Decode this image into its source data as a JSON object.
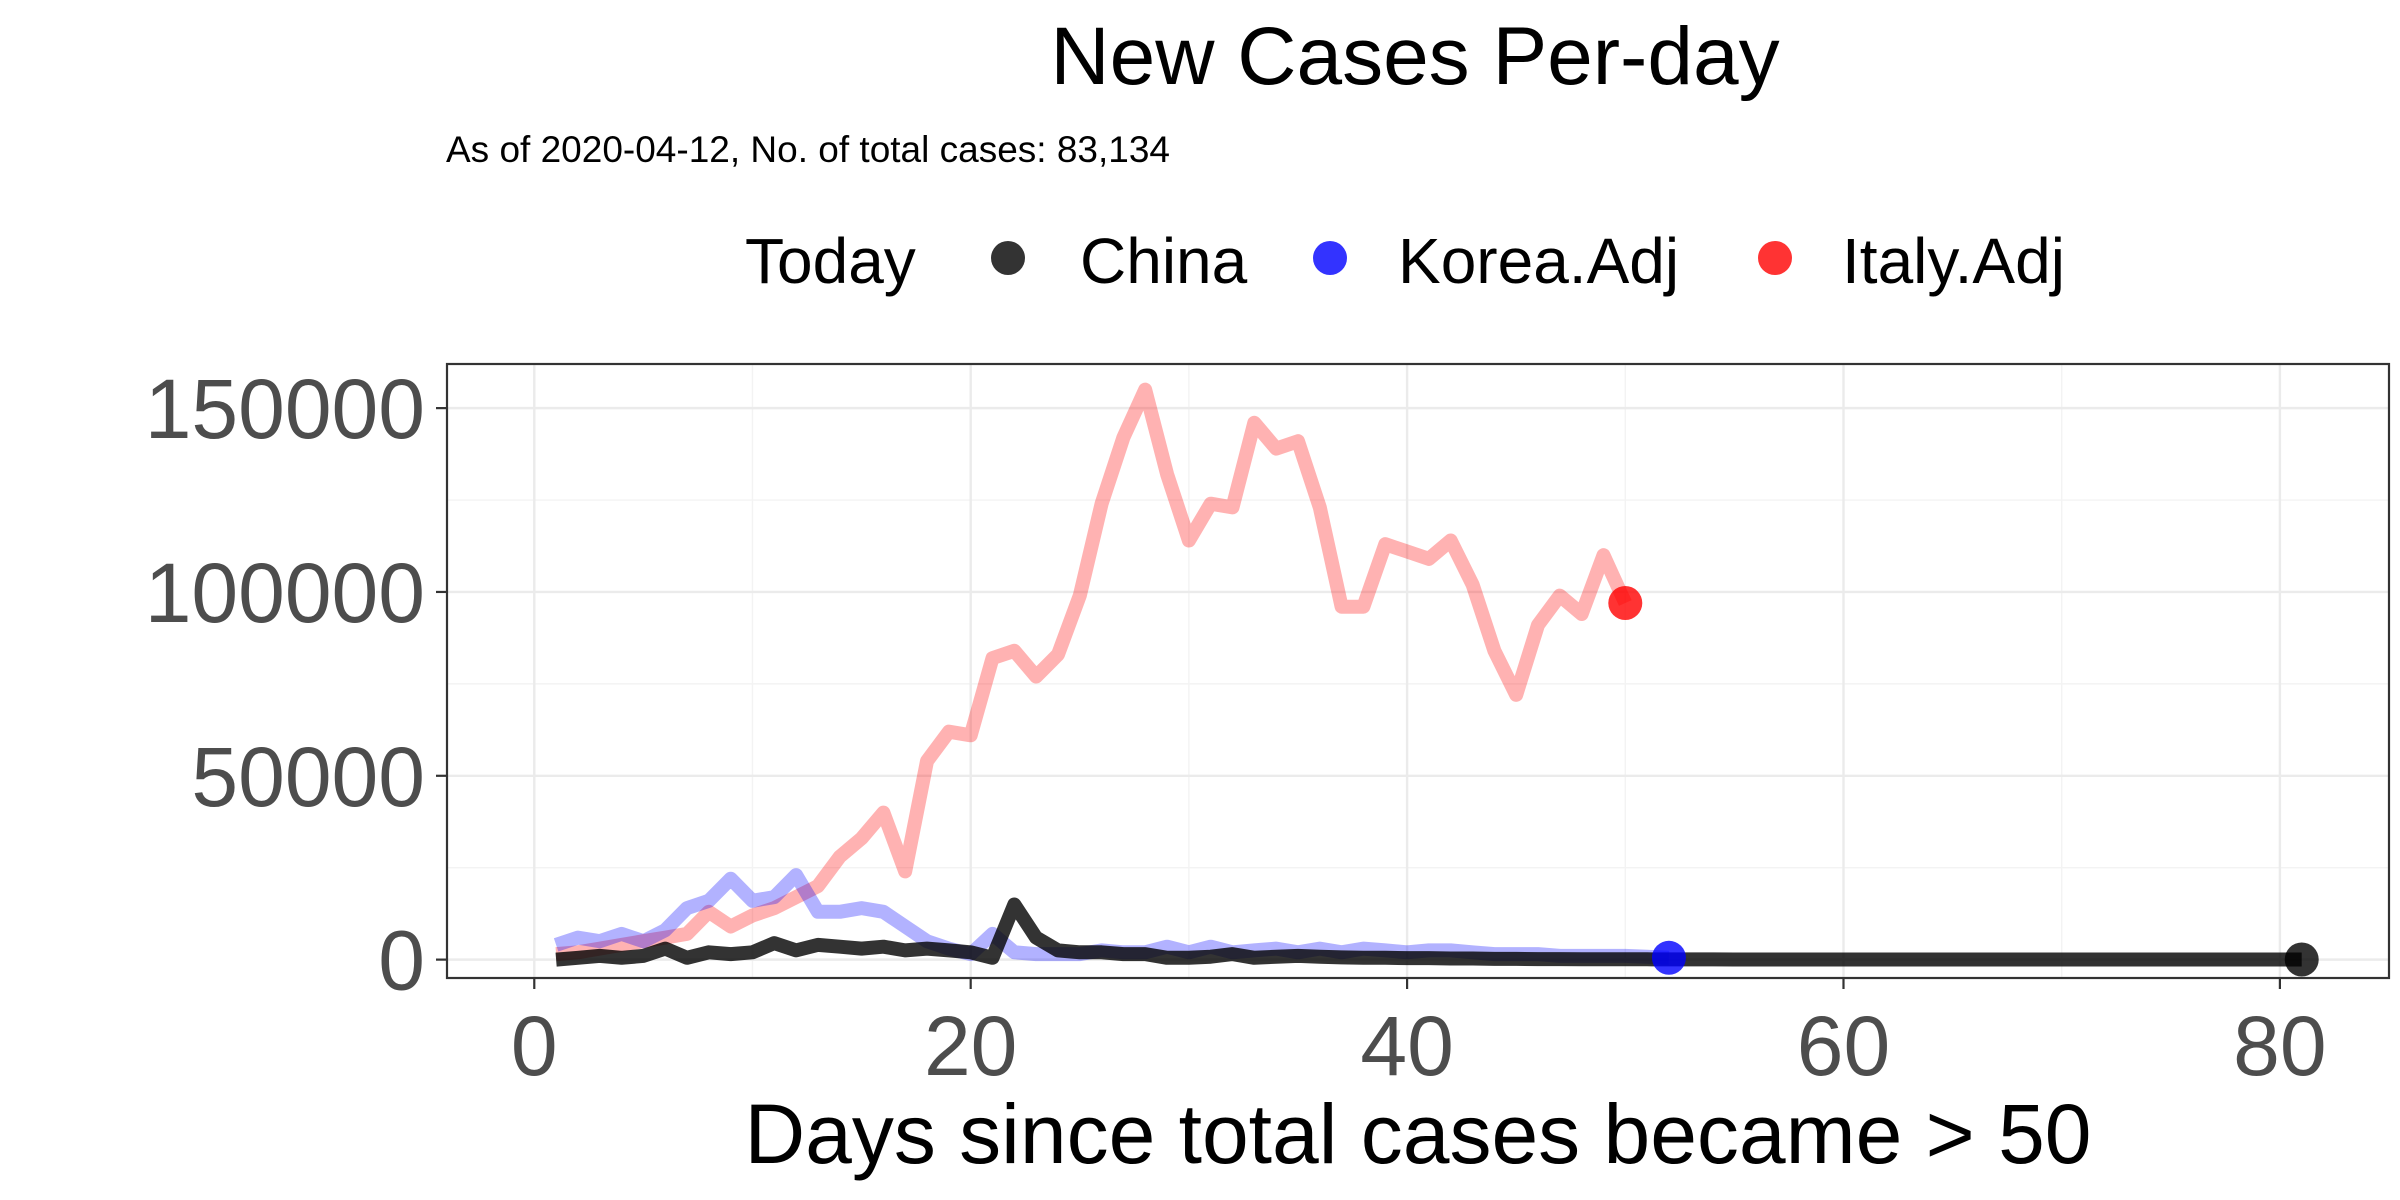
{
  "chart_data": {
    "type": "line",
    "title": "New Cases Per-day",
    "subtitle": "As of 2020-04-12, No. of total cases: 83,134",
    "xlabel": "Days since total cases became > 50",
    "ylabel": "",
    "xlim": [
      -4,
      85
    ],
    "ylim": [
      -5000,
      162000
    ],
    "x_ticks": [
      0,
      20,
      40,
      60,
      80
    ],
    "y_ticks": [
      0,
      50000,
      100000,
      150000
    ],
    "grid": true,
    "legend": {
      "title": "Today",
      "position": "top",
      "entries": [
        "China",
        "Korea.Adj",
        "Italy.Adj"
      ]
    },
    "series": [
      {
        "name": "Italy.Adj",
        "color": "#ff0000",
        "line_opacity": 0.3,
        "x": [
          1,
          2,
          3,
          4,
          5,
          6,
          7,
          8,
          9,
          10,
          11,
          12,
          13,
          14,
          15,
          16,
          17,
          18,
          19,
          20,
          21,
          22,
          23,
          24,
          25,
          26,
          27,
          28,
          29,
          30,
          31,
          32,
          33,
          34,
          35,
          36,
          37,
          38,
          39,
          40,
          41,
          42,
          43,
          44,
          45,
          46,
          47,
          48,
          49,
          50
        ],
        "values": [
          1500,
          2000,
          3000,
          4000,
          5000,
          6000,
          7000,
          13000,
          9000,
          12000,
          14000,
          17000,
          20000,
          28000,
          33000,
          40000,
          24000,
          54000,
          62000,
          61000,
          82000,
          84000,
          77000,
          83000,
          99000,
          124000,
          142000,
          155000,
          132000,
          114000,
          124000,
          123000,
          146000,
          139000,
          141000,
          123000,
          96000,
          96000,
          113000,
          111000,
          109000,
          114000,
          102000,
          84000,
          72000,
          91000,
          99000,
          94000,
          110000,
          97000
        ],
        "today": {
          "x": 50,
          "y": 97000
        }
      },
      {
        "name": "Korea.Adj",
        "color": "#0000ff",
        "line_opacity": 0.3,
        "x": [
          1,
          2,
          3,
          4,
          5,
          6,
          7,
          8,
          9,
          10,
          11,
          12,
          13,
          14,
          15,
          16,
          17,
          18,
          19,
          20,
          21,
          22,
          23,
          24,
          25,
          26,
          27,
          28,
          29,
          30,
          31,
          32,
          33,
          34,
          35,
          36,
          37,
          38,
          39,
          40,
          41,
          42,
          43,
          44,
          45,
          46,
          47,
          48,
          49,
          50,
          51,
          52
        ],
        "values": [
          4000,
          6000,
          5000,
          7000,
          5000,
          8000,
          14000,
          16000,
          22000,
          16000,
          17000,
          23000,
          13000,
          13000,
          14000,
          13000,
          9000,
          5000,
          3000,
          1500,
          7000,
          2000,
          1500,
          1500,
          1500,
          2500,
          2000,
          2000,
          3500,
          2000,
          3500,
          2000,
          2500,
          3000,
          2000,
          3000,
          2000,
          3000,
          2500,
          2000,
          2500,
          2500,
          2000,
          1500,
          1500,
          1500,
          1000,
          1000,
          1000,
          1000,
          800,
          500
        ],
        "today": {
          "x": 52,
          "y": 500
        }
      },
      {
        "name": "China",
        "color": "#000000",
        "line_opacity": 0.8,
        "x": [
          1,
          2,
          3,
          4,
          5,
          6,
          7,
          8,
          9,
          10,
          11,
          12,
          13,
          14,
          15,
          16,
          17,
          18,
          19,
          20,
          21,
          22,
          23,
          24,
          25,
          26,
          27,
          28,
          29,
          30,
          31,
          32,
          33,
          34,
          35,
          36,
          37,
          38,
          39,
          40,
          41,
          42,
          43,
          44,
          45,
          46,
          47,
          48,
          49,
          50,
          51,
          52,
          53,
          54,
          55,
          56,
          57,
          58,
          59,
          60,
          61,
          62,
          63,
          64,
          65,
          66,
          67,
          68,
          69,
          70,
          71,
          72,
          73,
          74,
          75,
          76,
          77,
          78,
          79,
          80,
          81
        ],
        "values": [
          0,
          500,
          1000,
          500,
          1000,
          3000,
          500,
          2000,
          1500,
          2000,
          4500,
          2500,
          4000,
          3500,
          3000,
          3500,
          2500,
          3000,
          2500,
          2000,
          500,
          15000,
          6000,
          2500,
          2000,
          2000,
          1500,
          1500,
          500,
          500,
          800,
          1500,
          500,
          800,
          1000,
          800,
          600,
          500,
          500,
          400,
          400,
          300,
          300,
          200,
          200,
          150,
          150,
          100,
          100,
          100,
          80,
          60,
          50,
          50,
          40,
          40,
          30,
          30,
          30,
          40,
          30,
          30,
          30,
          30,
          40,
          30,
          30,
          30,
          30,
          20,
          30,
          20,
          20,
          30,
          20,
          20,
          20,
          20,
          30,
          30,
          30
        ],
        "today": {
          "x": 81,
          "y": 30
        }
      }
    ]
  }
}
